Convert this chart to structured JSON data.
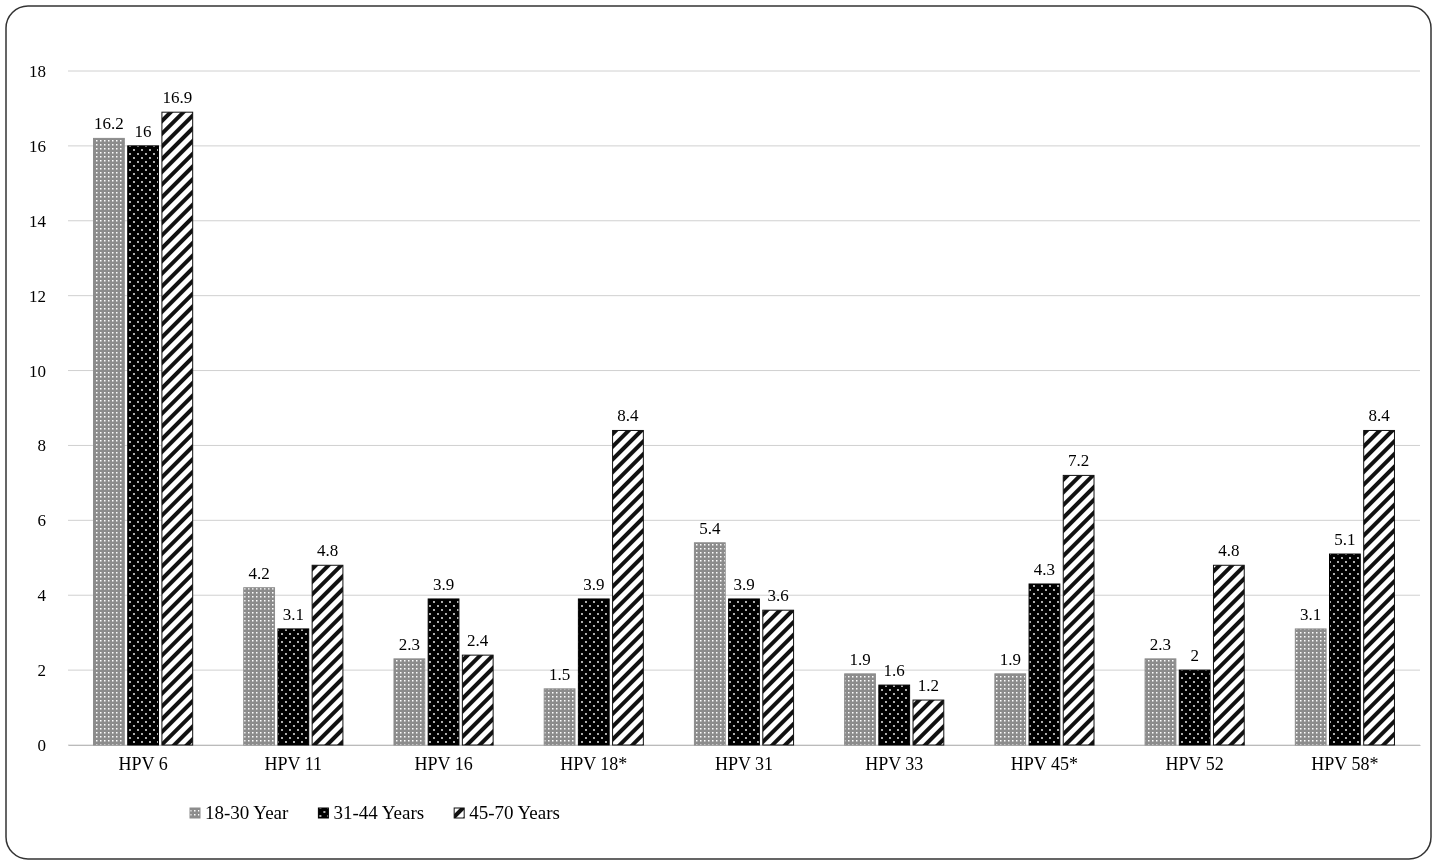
{
  "chart_data": {
    "type": "bar",
    "categories": [
      "HPV 6",
      "HPV 11",
      "HPV 16",
      "HPV 18*",
      "HPV 31",
      "HPV 33",
      "HPV 45*",
      "HPV 52",
      "HPV 58*"
    ],
    "series": [
      {
        "name": "18-30 Year",
        "color": "#8c8c8c",
        "values": [
          16.2,
          4.2,
          2.3,
          1.5,
          5.4,
          1.9,
          1.9,
          2.3,
          3.1
        ]
      },
      {
        "name": "31-44 Years",
        "color": "#000000",
        "values": [
          16,
          3.1,
          3.9,
          3.9,
          3.9,
          1.6,
          4.3,
          2,
          5.1
        ]
      },
      {
        "name": "45-70 Years",
        "color": "#111111",
        "values": [
          16.9,
          4.8,
          2.4,
          8.4,
          3.6,
          1.2,
          7.2,
          4.8,
          8.4
        ]
      }
    ],
    "ylim": [
      0,
      18
    ],
    "yticks": [
      0,
      2,
      4,
      6,
      8,
      10,
      12,
      14,
      16,
      18
    ],
    "grid": "y",
    "legend": "bottom left",
    "data_labels": true
  }
}
